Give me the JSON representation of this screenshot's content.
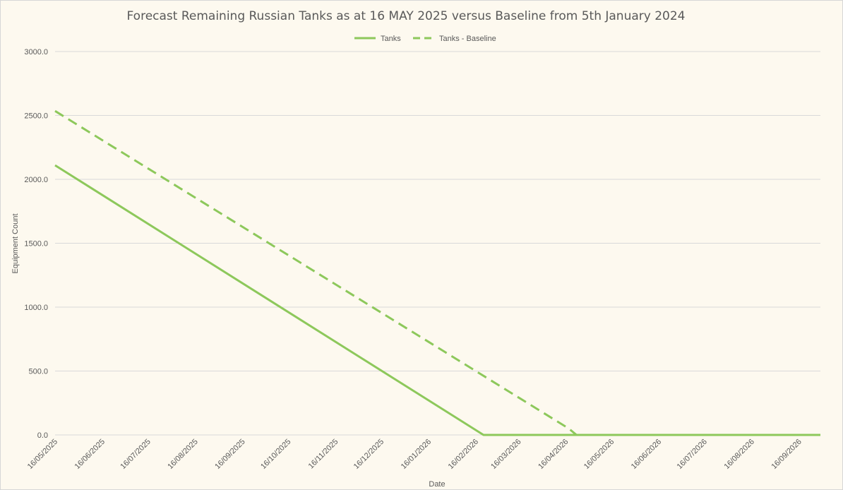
{
  "chart_data": {
    "type": "line",
    "title": "Forecast Remaining Russian Tanks as at 16 MAY 2025 versus Baseline from 5th January 2024",
    "xlabel": "Date",
    "ylabel": "Equipment Count",
    "x_range": [
      "16/05/2025",
      "30/09/2026"
    ],
    "ylim": [
      0,
      3000
    ],
    "y_ticks": [
      "0.0",
      "500.0",
      "1000.0",
      "1500.0",
      "2000.0",
      "2500.0",
      "3000.0"
    ],
    "x_ticks": [
      "16/05/2025",
      "16/06/2025",
      "16/07/2025",
      "16/08/2025",
      "16/09/2025",
      "16/10/2025",
      "16/11/2025",
      "16/12/2025",
      "16/01/2026",
      "16/02/2026",
      "16/03/2026",
      "16/04/2026",
      "16/05/2026",
      "16/06/2026",
      "16/07/2026",
      "16/08/2026",
      "16/09/2026"
    ],
    "grid": true,
    "legend": "top",
    "series": [
      {
        "name": "Tanks",
        "style": "solid",
        "color": "#8dc85b",
        "points": [
          {
            "x": "16/05/2025",
            "y": 2110
          },
          {
            "x": "21/02/2026",
            "y": 0
          },
          {
            "x": "30/09/2026",
            "y": 0
          }
        ]
      },
      {
        "name": "Tanks - Baseline",
        "style": "dashed",
        "color": "#8dc85b",
        "points": [
          {
            "x": "16/05/2025",
            "y": 2535
          },
          {
            "x": "18/04/2026",
            "y": 50
          },
          {
            "x": "23/04/2026",
            "y": 0
          }
        ]
      }
    ]
  }
}
